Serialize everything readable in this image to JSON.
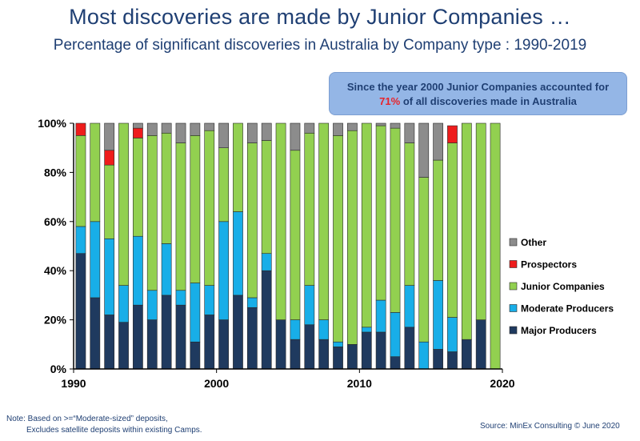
{
  "title": "Most discoveries are made by Junior Companies …",
  "subtitle": "Percentage of significant discoveries in Australia by Company type : 1990-2019",
  "callout": {
    "line1": "Since the year 2000 Junior  Companies accounted for",
    "highlight": "71%",
    "line2_rest": " of all discoveries made in Australia"
  },
  "note": {
    "line1": "Note: Based on >=“Moderate-sized” deposits,",
    "line2": "Excludes satellite deposits within existing Camps."
  },
  "source": "Source: MinEx Consulting  © June 2020",
  "colors": {
    "Major Producers": "#1f3a5f",
    "Moderate Producers": "#18aee8",
    "Junior Companies": "#92d050",
    "Prospectors": "#ee1c1c",
    "Other": "#8c8c8c"
  },
  "chart_data": {
    "type": "bar",
    "stacked": true,
    "x": [
      1990,
      1991,
      1992,
      1993,
      1994,
      1995,
      1996,
      1997,
      1998,
      1999,
      2000,
      2001,
      2002,
      2003,
      2004,
      2005,
      2006,
      2007,
      2008,
      2009,
      2010,
      2011,
      2012,
      2013,
      2014,
      2015,
      2016,
      2017,
      2018,
      2019
    ],
    "x_ticks": [
      "1990",
      "2000",
      "2010",
      "2020"
    ],
    "xlim": [
      1990,
      2020
    ],
    "y_ticks": [
      "0%",
      "20%",
      "40%",
      "60%",
      "80%",
      "100%"
    ],
    "ylim": [
      0,
      100
    ],
    "legend_position": "right",
    "legend_order": [
      "Other",
      "Prospectors",
      "Junior Companies",
      "Moderate Producers",
      "Major Producers"
    ],
    "series": [
      {
        "name": "Major Producers",
        "values": [
          47,
          29,
          22,
          19,
          26,
          20,
          30,
          26,
          11,
          22,
          20,
          30,
          25,
          40,
          20,
          12,
          18,
          12,
          9,
          10,
          15,
          15,
          5,
          17,
          0,
          8,
          7,
          12,
          20,
          0
        ]
      },
      {
        "name": "Moderate Producers",
        "values": [
          11,
          31,
          31,
          15,
          28,
          12,
          21,
          6,
          24,
          12,
          40,
          34,
          4,
          7,
          0,
          8,
          16,
          8,
          2,
          0,
          2,
          13,
          18,
          17,
          11,
          28,
          14,
          0,
          0,
          0
        ]
      },
      {
        "name": "Junior Companies",
        "values": [
          37,
          40,
          30,
          66,
          40,
          63,
          45,
          60,
          60,
          63,
          30,
          36,
          63,
          46,
          80,
          69,
          62,
          80,
          84,
          87,
          83,
          71,
          75,
          58,
          67,
          49,
          71,
          88,
          80,
          100
        ]
      },
      {
        "name": "Prospectors",
        "values": [
          5,
          0,
          6,
          0,
          4,
          0,
          0,
          0,
          0,
          0,
          0,
          0,
          0,
          0,
          0,
          0,
          0,
          0,
          0,
          0,
          0,
          0,
          0,
          0,
          0,
          0,
          7,
          0,
          0,
          0
        ]
      },
      {
        "name": "Other",
        "values": [
          0,
          0,
          11,
          0,
          2,
          5,
          4,
          8,
          5,
          3,
          10,
          0,
          8,
          7,
          0,
          11,
          4,
          0,
          5,
          3,
          0,
          1,
          2,
          8,
          22,
          15,
          0,
          0,
          0,
          0
        ]
      }
    ]
  }
}
